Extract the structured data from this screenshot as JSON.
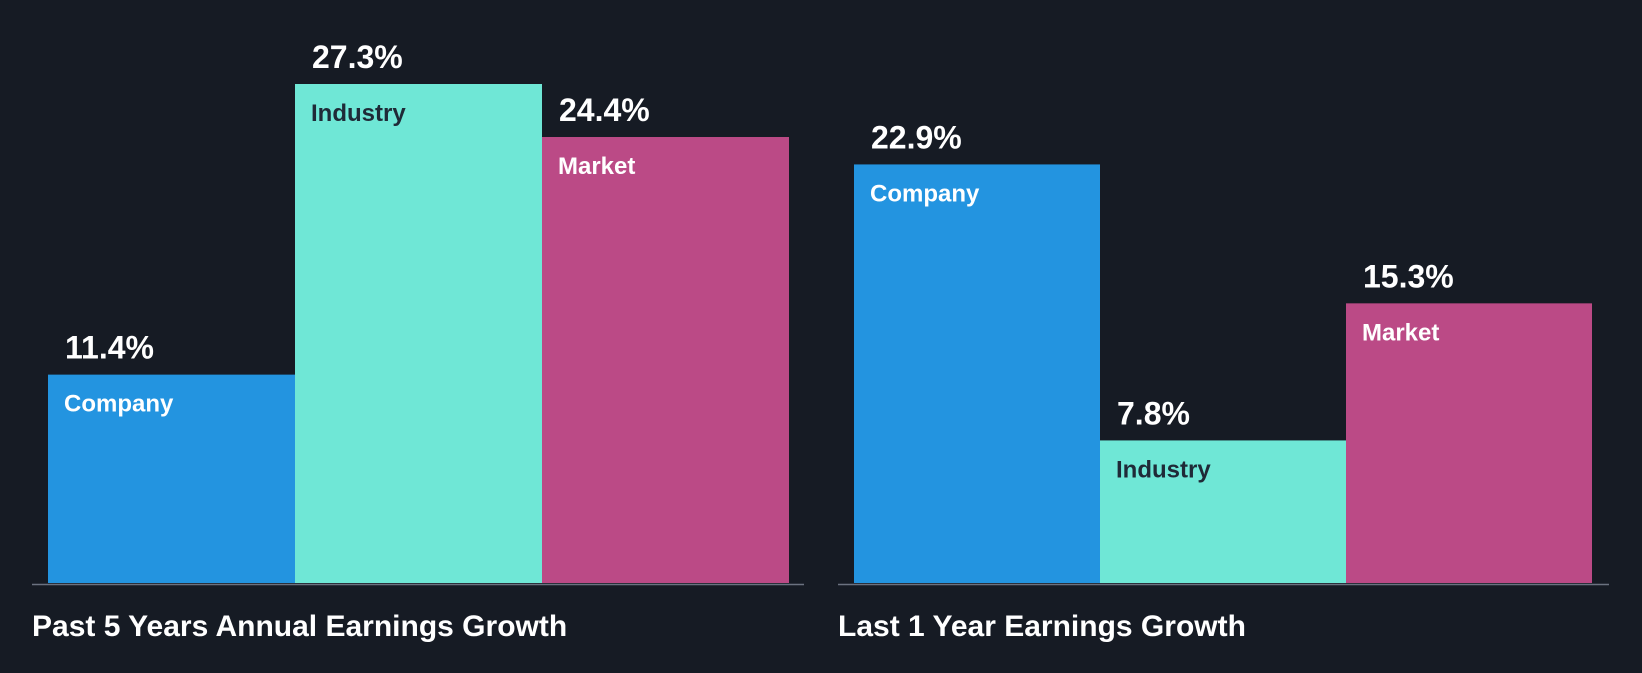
{
  "chart_data": [
    {
      "type": "bar",
      "title": "Past 5 Years Annual Earnings Growth",
      "categories": [
        "Company",
        "Industry",
        "Market"
      ],
      "values": [
        11.4,
        27.3,
        24.4
      ],
      "value_labels": [
        "11.4%",
        "27.3%",
        "24.4%"
      ],
      "colors": [
        "#2394e0",
        "#6fe7d6",
        "#bb4a86"
      ],
      "label_colors": [
        "#ffffff",
        "#1f2a37",
        "#ffffff"
      ],
      "ylim": [
        0,
        27.3
      ],
      "grid": false,
      "legend": "none"
    },
    {
      "type": "bar",
      "title": "Last 1 Year Earnings Growth",
      "categories": [
        "Company",
        "Industry",
        "Market"
      ],
      "values": [
        22.9,
        7.8,
        15.3
      ],
      "value_labels": [
        "22.9%",
        "7.8%",
        "15.3%"
      ],
      "colors": [
        "#2394e0",
        "#6fe7d6",
        "#bb4a86"
      ],
      "label_colors": [
        "#ffffff",
        "#1f2a37",
        "#ffffff"
      ],
      "ylim": [
        0,
        27.3
      ],
      "grid": false,
      "legend": "none"
    }
  ]
}
